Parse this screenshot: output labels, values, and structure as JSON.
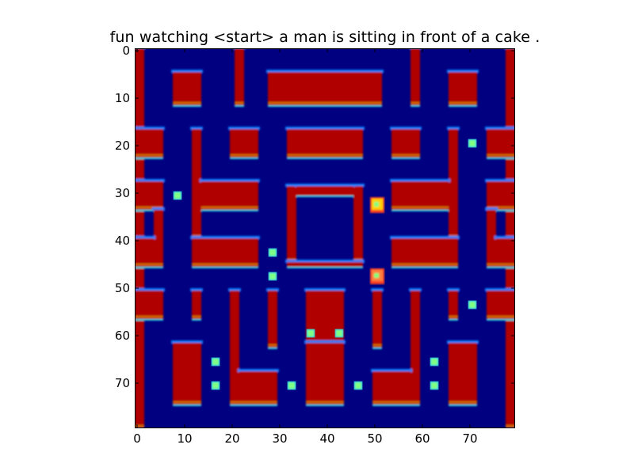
{
  "plot": {
    "title": "fun watching <start> a man is sitting in front of a cake .",
    "extent": [
      80,
      80
    ],
    "colors": {
      "background": "#000080",
      "wall": "#b00000",
      "wall_edge_light": "#19d3e5",
      "wall_edge_dark": "#0080ff",
      "wall_edge_warm": "#ffd000",
      "pellet": "#80ff80",
      "frame": "#000000"
    },
    "x_ticks": [
      "0",
      "10",
      "20",
      "30",
      "40",
      "50",
      "60",
      "70"
    ],
    "y_ticks": [
      "0",
      "10",
      "20",
      "30",
      "40",
      "50",
      "60",
      "70"
    ]
  },
  "walls": [
    [
      0,
      0,
      2,
      80
    ],
    [
      78,
      0,
      2,
      80
    ],
    [
      21,
      0,
      2,
      12
    ],
    [
      58,
      0,
      2,
      12
    ],
    [
      8,
      5,
      6,
      7
    ],
    [
      66,
      5,
      6,
      7
    ],
    [
      28,
      5,
      24,
      7
    ],
    [
      0,
      17,
      6,
      6
    ],
    [
      74,
      17,
      6,
      6
    ],
    [
      12,
      17,
      2,
      23
    ],
    [
      66,
      17,
      2,
      23
    ],
    [
      20,
      17,
      6,
      6
    ],
    [
      54,
      17,
      6,
      6
    ],
    [
      32,
      17,
      16,
      6
    ],
    [
      14,
      28,
      12,
      6
    ],
    [
      54,
      28,
      12,
      6
    ],
    [
      32,
      29,
      2,
      16
    ],
    [
      46,
      29,
      2,
      16
    ],
    [
      34,
      29,
      12,
      2
    ],
    [
      0,
      28,
      6,
      6
    ],
    [
      74,
      28,
      6,
      6
    ],
    [
      4,
      34,
      2,
      12
    ],
    [
      74,
      34,
      2,
      12
    ],
    [
      0,
      40,
      4,
      6
    ],
    [
      76,
      40,
      4,
      6
    ],
    [
      12,
      40,
      14,
      6
    ],
    [
      54,
      40,
      14,
      6
    ],
    [
      32,
      45,
      16,
      1
    ],
    [
      0,
      51,
      6,
      6
    ],
    [
      74,
      51,
      6,
      6
    ],
    [
      12,
      51,
      2,
      6
    ],
    [
      66,
      51,
      2,
      6
    ],
    [
      20,
      51,
      2,
      24
    ],
    [
      58,
      51,
      2,
      24
    ],
    [
      28,
      51,
      2,
      12
    ],
    [
      50,
      51,
      2,
      12
    ],
    [
      36,
      51,
      8,
      12
    ],
    [
      8,
      62,
      6,
      13
    ],
    [
      66,
      62,
      6,
      13
    ],
    [
      22,
      68,
      8,
      7
    ],
    [
      50,
      68,
      8,
      7
    ],
    [
      36,
      62,
      8,
      13
    ]
  ],
  "pellets": [
    [
      9,
      31
    ],
    [
      71,
      20
    ],
    [
      29,
      43
    ],
    [
      29,
      48
    ],
    [
      71,
      54
    ],
    [
      37,
      60
    ],
    [
      43,
      60
    ],
    [
      17,
      66
    ],
    [
      63,
      66
    ],
    [
      17,
      71
    ],
    [
      33,
      71
    ],
    [
      47,
      71
    ],
    [
      63,
      71
    ]
  ],
  "sprites": [
    {
      "name": "pacman-sprite",
      "x": 51,
      "y": 33,
      "color": "#ffd000"
    },
    {
      "name": "ghost-sprite",
      "x": 51,
      "y": 48,
      "color": "#ff8040"
    }
  ]
}
